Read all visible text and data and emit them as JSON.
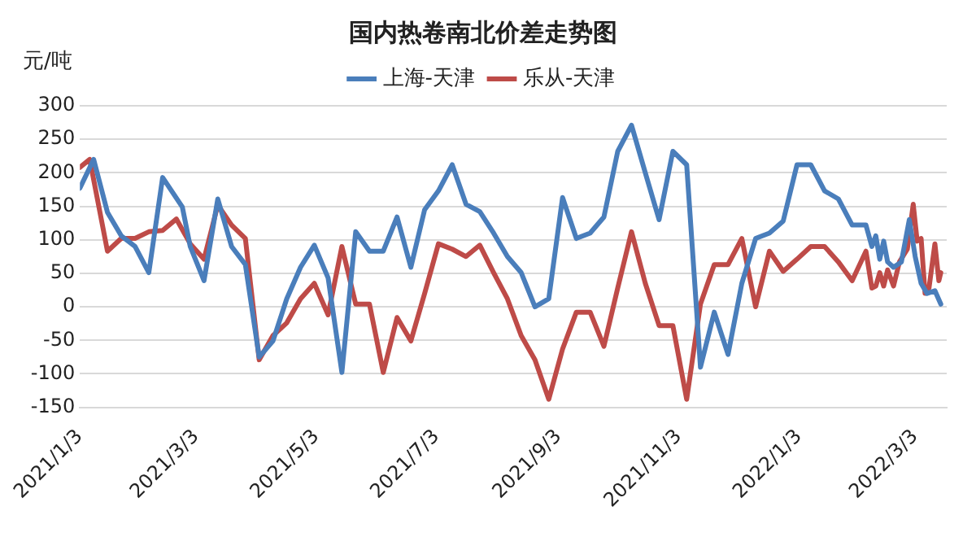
{
  "chart_data": {
    "type": "line",
    "title": "国内热卷南北价差走势图",
    "ylabel": "元/吨",
    "legend": "top",
    "grid": "y",
    "marker": "none",
    "line_style": "solid",
    "xlim": [
      "2021-01-03",
      "2022-03-19"
    ],
    "xticks": [
      {
        "value": "2021-01-03",
        "label": "2021/1/3"
      },
      {
        "value": "2021-03-03",
        "label": "2021/3/3"
      },
      {
        "value": "2021-05-03",
        "label": "2021/5/3"
      },
      {
        "value": "2021-07-03",
        "label": "2021/7/3"
      },
      {
        "value": "2021-09-03",
        "label": "2021/9/3"
      },
      {
        "value": "2021-11-03",
        "label": "2021/11/3"
      },
      {
        "value": "2022-01-03",
        "label": "2022/1/3"
      },
      {
        "value": "2022-03-03",
        "label": "2022/3/3"
      }
    ],
    "ylim": [
      -150,
      300
    ],
    "yticks": [
      -150,
      -100,
      -50,
      0,
      50,
      100,
      150,
      200,
      250,
      300
    ],
    "series": [
      {
        "name": "上海-天津",
        "color": "#4a7ebb",
        "x": [
          "2021-01-03",
          "2021-01-10",
          "2021-01-17",
          "2021-01-24",
          "2021-01-31",
          "2021-02-07",
          "2021-02-14",
          "2021-02-24",
          "2021-02-28",
          "2021-03-07",
          "2021-03-14",
          "2021-03-21",
          "2021-03-28",
          "2021-04-04",
          "2021-04-11",
          "2021-04-18",
          "2021-04-25",
          "2021-05-02",
          "2021-05-09",
          "2021-05-16",
          "2021-05-23",
          "2021-05-30",
          "2021-06-06",
          "2021-06-13",
          "2021-06-20",
          "2021-06-27",
          "2021-07-04",
          "2021-07-11",
          "2021-07-18",
          "2021-07-25",
          "2021-08-01",
          "2021-08-08",
          "2021-08-15",
          "2021-08-22",
          "2021-08-29",
          "2021-09-05",
          "2021-09-12",
          "2021-09-19",
          "2021-09-26",
          "2021-10-03",
          "2021-10-10",
          "2021-10-17",
          "2021-10-24",
          "2021-10-31",
          "2021-11-07",
          "2021-11-14",
          "2021-11-21",
          "2021-11-28",
          "2021-12-05",
          "2021-12-12",
          "2021-12-19",
          "2021-12-26",
          "2022-01-02",
          "2022-01-09",
          "2022-01-16",
          "2022-01-23",
          "2022-01-30",
          "2022-02-06",
          "2022-02-09",
          "2022-02-11",
          "2022-02-13",
          "2022-02-15",
          "2022-02-17",
          "2022-02-20",
          "2022-02-24",
          "2022-02-28",
          "2022-03-03",
          "2022-03-06",
          "2022-03-09",
          "2022-03-13",
          "2022-03-16"
        ],
        "values": [
          177,
          220,
          141,
          106,
          90,
          51,
          193,
          149,
          90,
          39,
          161,
          90,
          63,
          -75,
          -51,
          12,
          59,
          92,
          43,
          -98,
          112,
          83,
          83,
          134,
          59,
          145,
          173,
          212,
          153,
          142,
          110,
          75,
          51,
          0,
          12,
          163,
          102,
          110,
          134,
          232,
          271,
          200,
          130,
          232,
          212,
          -90,
          -8,
          -71,
          35,
          102,
          110,
          128,
          212,
          212,
          173,
          161,
          122,
          122,
          90,
          106,
          71,
          98,
          67,
          59,
          67,
          130,
          75,
          35,
          20,
          24,
          4
        ]
      },
      {
        "name": "乐从-天津",
        "color": "#be4b48",
        "x": [
          "2021-01-03",
          "2021-01-08",
          "2021-01-17",
          "2021-01-24",
          "2021-01-31",
          "2021-02-07",
          "2021-02-14",
          "2021-02-21",
          "2021-02-28",
          "2021-03-07",
          "2021-03-14",
          "2021-03-21",
          "2021-03-28",
          "2021-04-04",
          "2021-04-11",
          "2021-04-18",
          "2021-04-25",
          "2021-05-02",
          "2021-05-09",
          "2021-05-16",
          "2021-05-23",
          "2021-05-30",
          "2021-06-06",
          "2021-06-13",
          "2021-06-20",
          "2021-06-27",
          "2021-07-04",
          "2021-07-11",
          "2021-07-18",
          "2021-07-25",
          "2021-08-01",
          "2021-08-08",
          "2021-08-15",
          "2021-08-22",
          "2021-08-29",
          "2021-09-05",
          "2021-09-12",
          "2021-09-19",
          "2021-09-26",
          "2021-10-03",
          "2021-10-10",
          "2021-10-17",
          "2021-10-24",
          "2021-10-31",
          "2021-11-07",
          "2021-11-14",
          "2021-11-21",
          "2021-11-28",
          "2021-12-05",
          "2021-12-12",
          "2021-12-19",
          "2021-12-26",
          "2022-01-02",
          "2022-01-09",
          "2022-01-16",
          "2022-01-23",
          "2022-01-30",
          "2022-02-06",
          "2022-02-09",
          "2022-02-11",
          "2022-02-13",
          "2022-02-15",
          "2022-02-17",
          "2022-02-20",
          "2022-02-23",
          "2022-02-27",
          "2022-03-02",
          "2022-03-04",
          "2022-03-06",
          "2022-03-08",
          "2022-03-10",
          "2022-03-13",
          "2022-03-15",
          "2022-03-16"
        ],
        "values": [
          208,
          220,
          83,
          102,
          102,
          112,
          114,
          131,
          94,
          71,
          152,
          122,
          102,
          -79,
          -43,
          -24,
          12,
          35,
          -12,
          90,
          4,
          4,
          -98,
          -16,
          -51,
          20,
          94,
          86,
          75,
          92,
          51,
          12,
          -43,
          -79,
          -138,
          -63,
          -8,
          -8,
          -59,
          28,
          112,
          35,
          -28,
          -28,
          -138,
          4,
          63,
          63,
          102,
          0,
          83,
          53,
          71,
          90,
          90,
          67,
          39,
          83,
          28,
          31,
          51,
          31,
          55,
          31,
          67,
          86,
          153,
          98,
          102,
          20,
          28,
          94,
          39,
          51
        ]
      }
    ]
  }
}
